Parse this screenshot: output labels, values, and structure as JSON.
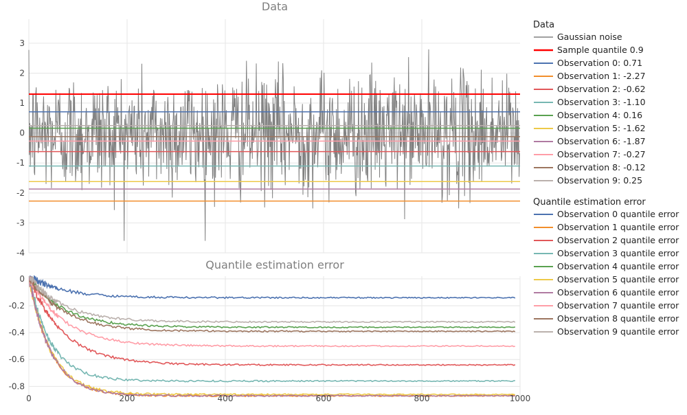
{
  "colors": {
    "noise": "#808080",
    "sample_quantile": "#ff0000",
    "grid": "#e6e6e6",
    "observations": [
      "#4c72b0",
      "#f28e2b",
      "#e15759",
      "#76b7b2",
      "#59a14f",
      "#edc948",
      "#b07aa1",
      "#ff9da7",
      "#9c755f",
      "#bab0ac"
    ]
  },
  "chart_data": [
    {
      "type": "line",
      "title": "Data",
      "xlim": [
        0,
        1000
      ],
      "ylim": [
        -4,
        3.8
      ],
      "yticks": [
        3,
        2,
        1,
        0,
        -1,
        -2,
        -3,
        -4
      ],
      "grid": true,
      "noise": {
        "name": "Gaussian noise",
        "n": 1000,
        "mean": 0,
        "std": 1,
        "min": -3.6,
        "max": 3.5
      },
      "series": [
        {
          "name": "Sample quantile 0.9",
          "value": 1.3
        },
        {
          "name": "Observation 0: 0.71",
          "value": 0.71
        },
        {
          "name": "Observation 1: -2.27",
          "value": -2.27
        },
        {
          "name": "Observation 2: -0.62",
          "value": -0.62
        },
        {
          "name": "Observation 3: -1.10",
          "value": -1.1
        },
        {
          "name": "Observation 4: 0.16",
          "value": 0.16
        },
        {
          "name": "Observation 5: -1.62",
          "value": -1.62
        },
        {
          "name": "Observation 6: -1.87",
          "value": -1.87
        },
        {
          "name": "Observation 7: -0.27",
          "value": -0.27
        },
        {
          "name": "Observation 8: -0.12",
          "value": -0.12
        },
        {
          "name": "Observation 9: 0.25",
          "value": 0.25
        }
      ],
      "legend_title": "Data",
      "legend_position": "right"
    },
    {
      "type": "line",
      "title": "Quantile estimation error",
      "xlim": [
        0,
        1000
      ],
      "ylim": [
        -0.88,
        0.02
      ],
      "xticks": [
        0,
        200,
        400,
        600,
        800,
        1000
      ],
      "yticks": [
        0,
        -0.2,
        -0.4,
        -0.6,
        -0.8
      ],
      "grid": true,
      "series": [
        {
          "name": "Observation 0 quantile error",
          "final": -0.14
        },
        {
          "name": "Observation 1 quantile error",
          "final": -0.87
        },
        {
          "name": "Observation 2 quantile error",
          "final": -0.64
        },
        {
          "name": "Observation 3 quantile error",
          "final": -0.76
        },
        {
          "name": "Observation 4 quantile error",
          "final": -0.36
        },
        {
          "name": "Observation 5 quantile error",
          "final": -0.86
        },
        {
          "name": "Observation 6 quantile error",
          "final": -0.87
        },
        {
          "name": "Observation 7 quantile error",
          "final": -0.5
        },
        {
          "name": "Observation 8 quantile error",
          "final": -0.39
        },
        {
          "name": "Observation 9 quantile error",
          "final": -0.32
        }
      ],
      "legend_title": "Quantile estimation error",
      "legend_position": "right"
    }
  ]
}
